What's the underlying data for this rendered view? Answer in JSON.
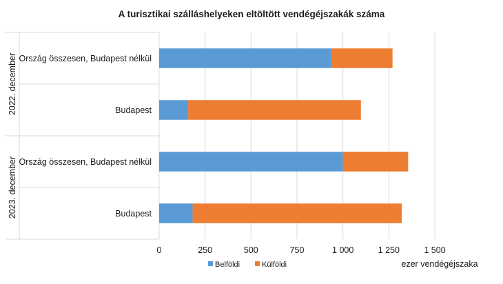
{
  "chart_data": {
    "type": "bar",
    "orientation": "horizontal",
    "stacked": true,
    "title": "A turisztikai szálláshelyeken eltöltött vendégéjszakák száma",
    "xlabel": "ezer vendégéjszaka",
    "xlim": [
      0,
      1500
    ],
    "xticks": [
      {
        "value": 0,
        "label": "0"
      },
      {
        "value": 250,
        "label": "250"
      },
      {
        "value": 500,
        "label": "500"
      },
      {
        "value": 750,
        "label": "750"
      },
      {
        "value": 1000,
        "label": "1 000"
      },
      {
        "value": 1250,
        "label": "1 250"
      },
      {
        "value": 1500,
        "label": "1 500"
      }
    ],
    "grid": true,
    "legend_position": "bottom",
    "groups": [
      {
        "label": "2022. december",
        "categories": [
          "Ország összesen, Budapest nélkül",
          "Budapest"
        ]
      },
      {
        "label": "2023. december",
        "categories": [
          "Ország összesen, Budapest nélkül",
          "Budapest"
        ]
      }
    ],
    "series": [
      {
        "name": "Belföldi",
        "color": "#5b9bd5",
        "values": [
          940,
          158,
          1000,
          182
        ]
      },
      {
        "name": "Külföldi",
        "color": "#ed7d31",
        "values": [
          330,
          940,
          355,
          1138
        ]
      }
    ]
  }
}
